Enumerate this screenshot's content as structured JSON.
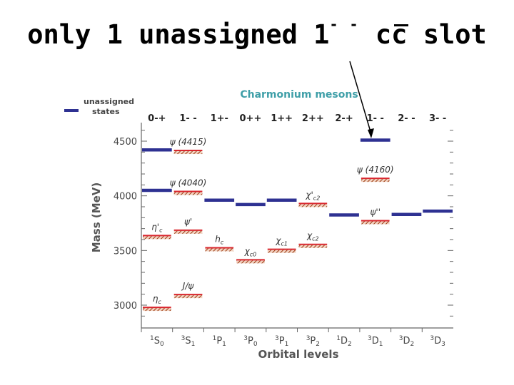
{
  "slide": {
    "title_main": "only 1 unassigned 1",
    "title_sup": "- -",
    "title_cc": "cc",
    "title_end": "slot"
  },
  "colors": {
    "assigned": "#d9262e",
    "unassigned": "#2e3192",
    "hatch": "#b5541c",
    "chart_title": "#3f9fa8",
    "axis": "#555555"
  },
  "chart_data": {
    "type": "level-diagram",
    "title": "Charmonium mesons",
    "xlabel": "Orbital levels",
    "ylabel": "Mass (MeV)",
    "ylim": [
      2850,
      4600
    ],
    "yticks": [
      3000,
      3500,
      4000,
      4500
    ],
    "legend": {
      "label_line1": "unassigned",
      "label_line2": "states",
      "position": "top-left"
    },
    "columns": [
      {
        "jpc": "0-+",
        "term": "1S0",
        "ts": "1",
        "tl": "S",
        "tj": "0"
      },
      {
        "jpc": "1- -",
        "term": "3S1",
        "ts": "3",
        "tl": "S",
        "tj": "1"
      },
      {
        "jpc": "1+-",
        "term": "1P1",
        "ts": "1",
        "tl": "P",
        "tj": "1"
      },
      {
        "jpc": "0++",
        "term": "3P0",
        "ts": "3",
        "tl": "P",
        "tj": "0"
      },
      {
        "jpc": "1++",
        "term": "3P1",
        "ts": "3",
        "tl": "P",
        "tj": "1"
      },
      {
        "jpc": "2++",
        "term": "3P2",
        "ts": "3",
        "tl": "P",
        "tj": "2"
      },
      {
        "jpc": "2-+",
        "term": "1D2",
        "ts": "1",
        "tl": "D",
        "tj": "2"
      },
      {
        "jpc": "1- -",
        "term": "3D1",
        "ts": "3",
        "tl": "D",
        "tj": "1"
      },
      {
        "jpc": "2- -",
        "term": "3D2",
        "ts": "3",
        "tl": "D",
        "tj": "2"
      },
      {
        "jpc": "3- -",
        "term": "3D3",
        "ts": "3",
        "tl": "D",
        "tj": "3"
      }
    ],
    "assigned_states": [
      {
        "col": 0,
        "mass": 2980,
        "label": "η",
        "sub": "c"
      },
      {
        "col": 0,
        "mass": 3637,
        "label": "η'",
        "sub": "c"
      },
      {
        "col": 1,
        "mass": 3097,
        "label": "J/ψ",
        "sub": ""
      },
      {
        "col": 1,
        "mass": 3686,
        "label": "ψ'",
        "sub": ""
      },
      {
        "col": 1,
        "mass": 4040,
        "label": "ψ (4040)",
        "sub": ""
      },
      {
        "col": 1,
        "mass": 4415,
        "label": "ψ (4415)",
        "sub": ""
      },
      {
        "col": 2,
        "mass": 3525,
        "label": "h",
        "sub": "c"
      },
      {
        "col": 3,
        "mass": 3415,
        "label": "χ",
        "sub": "c0"
      },
      {
        "col": 4,
        "mass": 3511,
        "label": "χ",
        "sub": "c1"
      },
      {
        "col": 5,
        "mass": 3556,
        "label": "χ",
        "sub": "c2"
      },
      {
        "col": 5,
        "mass": 3930,
        "label": "χ'",
        "sub": "c2"
      },
      {
        "col": 7,
        "mass": 3773,
        "label": "ψ''",
        "sub": ""
      },
      {
        "col": 7,
        "mass": 4160,
        "label": "ψ (4160)",
        "sub": ""
      }
    ],
    "unassigned_states": [
      {
        "col": 0,
        "mass": 4420
      },
      {
        "col": 0,
        "mass": 4050
      },
      {
        "col": 2,
        "mass": 3960
      },
      {
        "col": 3,
        "mass": 3920
      },
      {
        "col": 4,
        "mass": 3960
      },
      {
        "col": 6,
        "mass": 3825
      },
      {
        "col": 7,
        "mass": 4510
      },
      {
        "col": 8,
        "mass": 3830
      },
      {
        "col": 9,
        "mass": 3860
      }
    ]
  }
}
